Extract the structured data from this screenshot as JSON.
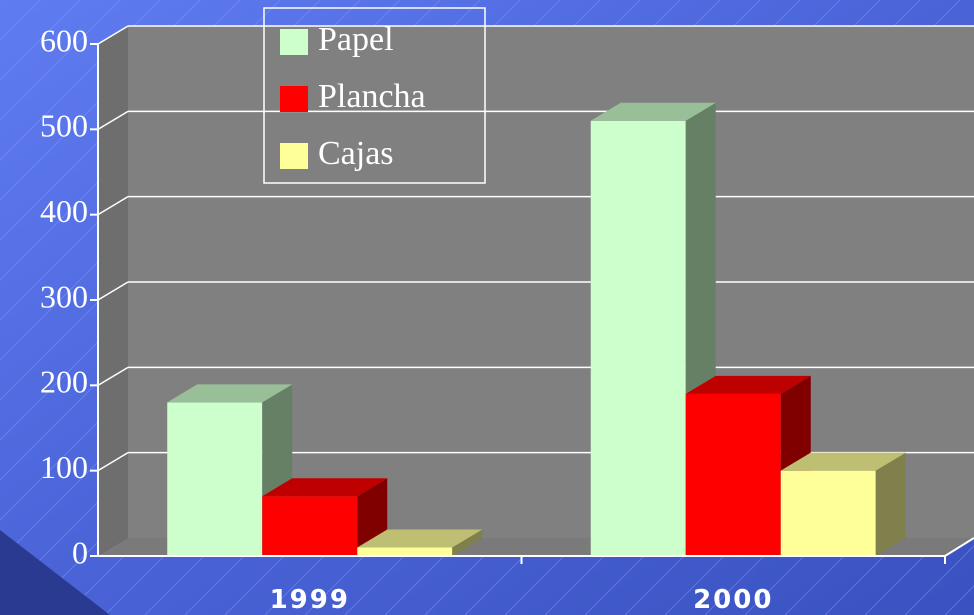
{
  "chart_data": {
    "type": "bar3d",
    "categories": [
      "1999",
      "2000"
    ],
    "series": [
      {
        "name": "Papel",
        "color": "#ccffcc",
        "values": [
          180,
          510
        ]
      },
      {
        "name": "Plancha",
        "color": "#ff0000",
        "values": [
          70,
          190
        ]
      },
      {
        "name": "Cajas",
        "color": "#ffff99",
        "values": [
          10,
          100
        ]
      }
    ],
    "ylim": [
      0,
      600
    ],
    "yticks": [
      0,
      100,
      200,
      300,
      400,
      500,
      600
    ],
    "grid": true,
    "legend": "top-left"
  }
}
